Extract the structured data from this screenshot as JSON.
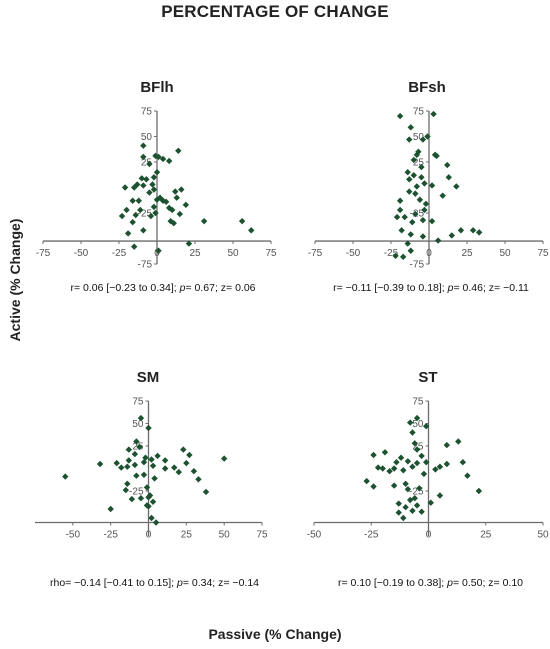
{
  "title": "PERCENTAGE OF CHANGE",
  "ylabel": "Active (% Change)",
  "xlabel": "Passive (% Change)",
  "colors": {
    "marker": "#1d5230",
    "axis": "#6b6b6b"
  },
  "chart_data": [
    {
      "type": "scatter",
      "title": "BFlh",
      "stats": {
        "prefix": "r= 0.06 [−0.23 to 0.34];  ",
        "p_label": "p",
        "p_rest": "= 0.67;  z= 0.06"
      },
      "xticks": [
        "-75",
        "-50",
        "-25",
        "0",
        "25",
        "50",
        "75"
      ],
      "yticks": [
        "-75",
        "-25",
        "25",
        "50",
        "75"
      ],
      "xlim": [
        -75,
        75
      ],
      "ylim": [
        -75,
        75
      ],
      "points": [
        [
          -9,
          41
        ],
        [
          -9,
          30
        ],
        [
          -5,
          23
        ],
        [
          -2,
          10
        ],
        [
          -10,
          9
        ],
        [
          -7,
          8
        ],
        [
          -3,
          3
        ],
        [
          -5,
          -5
        ],
        [
          -9,
          2
        ],
        [
          -13,
          3
        ],
        [
          -15,
          0
        ],
        [
          -21,
          0
        ],
        [
          -12,
          -13
        ],
        [
          -16,
          -13
        ],
        [
          -11,
          -22
        ],
        [
          -14,
          -27
        ],
        [
          -20,
          -22
        ],
        [
          -23,
          -28
        ],
        [
          -16,
          -34
        ],
        [
          -19,
          -45
        ],
        [
          -9,
          -42
        ],
        [
          -2,
          -19
        ],
        [
          -1,
          -25
        ],
        [
          -4,
          -28
        ],
        [
          0,
          -12
        ],
        [
          4,
          -13
        ],
        [
          6,
          -14
        ],
        [
          2,
          -10
        ],
        [
          -2,
          -2
        ],
        [
          0,
          15
        ],
        [
          1,
          30
        ],
        [
          4,
          28
        ],
        [
          8,
          26
        ],
        [
          -1,
          31
        ],
        [
          8,
          -20
        ],
        [
          10,
          -22
        ],
        [
          12,
          -4
        ],
        [
          16,
          -2
        ],
        [
          19,
          -17
        ],
        [
          15,
          -26
        ],
        [
          9,
          -33
        ],
        [
          11,
          -35
        ],
        [
          13,
          -10
        ],
        [
          14,
          36
        ],
        [
          31,
          -33
        ],
        [
          56,
          -33
        ],
        [
          62,
          -42
        ],
        [
          21,
          -55
        ],
        [
          1,
          -62
        ],
        [
          -15,
          -58
        ]
      ]
    },
    {
      "type": "scatter",
      "title": "BFsh",
      "stats": {
        "prefix": "r= −0.11 [−0.39 to 0.18];  ",
        "p_label": "p",
        "p_rest": "= 0.46;  z= −0.11"
      },
      "xticks": [
        "-75",
        "-50",
        "-25",
        "0",
        "25",
        "50",
        "75"
      ],
      "yticks": [
        "-75",
        "-25",
        "25",
        "50",
        "75"
      ],
      "xlim": [
        -75,
        75
      ],
      "ylim": [
        -75,
        75
      ],
      "points": [
        [
          3,
          72
        ],
        [
          -19,
          70
        ],
        [
          -12,
          59
        ],
        [
          -4,
          47
        ],
        [
          -1,
          50
        ],
        [
          -13,
          47
        ],
        [
          -8,
          32
        ],
        [
          -10,
          27
        ],
        [
          -5,
          20
        ],
        [
          -14,
          15
        ],
        [
          -13,
          8
        ],
        [
          -10,
          12
        ],
        [
          -5,
          10
        ],
        [
          -8,
          1
        ],
        [
          -3,
          4
        ],
        [
          2,
          2
        ],
        [
          -9,
          -6
        ],
        [
          -13,
          -4
        ],
        [
          -6,
          -12
        ],
        [
          -2,
          -16
        ],
        [
          -3,
          -22
        ],
        [
          -9,
          -26
        ],
        [
          -16,
          -29
        ],
        [
          -19,
          -13
        ],
        [
          -21,
          -29
        ],
        [
          -11,
          -34
        ],
        [
          -4,
          -32
        ],
        [
          -12,
          -46
        ],
        [
          -4,
          -48
        ],
        [
          -18,
          -42
        ],
        [
          -14,
          -55
        ],
        [
          -22,
          -67
        ],
        [
          -17,
          -68
        ],
        [
          6,
          -52
        ],
        [
          9,
          -8
        ],
        [
          12,
          22
        ],
        [
          13,
          10
        ],
        [
          18,
          1
        ],
        [
          21,
          -42
        ],
        [
          29,
          -42
        ],
        [
          33,
          -44
        ],
        [
          15,
          -47
        ],
        [
          4,
          32
        ],
        [
          5,
          31
        ],
        [
          -7,
          35
        ],
        [
          -19,
          -22
        ],
        [
          -12,
          -62
        ],
        [
          2,
          -33
        ]
      ]
    },
    {
      "type": "scatter",
      "title": "SM",
      "stats": {
        "prefix": "rho= −0.14 [−0.41 to 0.15];  ",
        "p_label": "p",
        "p_rest": "= 0.34;  z= −0.14"
      },
      "xticks": [
        "-50",
        "-25",
        "0",
        "25",
        "50",
        "75"
      ],
      "yticks": [
        "-25",
        "25",
        "50",
        "75"
      ],
      "xlim": [
        -75,
        75
      ],
      "ylim": [
        -75,
        75
      ],
      "points": [
        [
          -5,
          56
        ],
        [
          0,
          45
        ],
        [
          -8,
          30
        ],
        [
          -13,
          21
        ],
        [
          -6,
          24
        ],
        [
          -9,
          16
        ],
        [
          -3,
          7
        ],
        [
          -14,
          2
        ],
        [
          -9,
          4
        ],
        [
          -18,
          1
        ],
        [
          -21,
          6
        ],
        [
          -13,
          9
        ],
        [
          -2,
          12
        ],
        [
          2,
          10
        ],
        [
          3,
          3
        ],
        [
          -3,
          -7
        ],
        [
          -8,
          -8
        ],
        [
          -14,
          -17
        ],
        [
          -15,
          -24
        ],
        [
          -11,
          -34
        ],
        [
          -5,
          -33
        ],
        [
          -1,
          -21
        ],
        [
          0,
          -32
        ],
        [
          4,
          -11
        ],
        [
          6,
          14
        ],
        [
          11,
          9
        ],
        [
          11,
          0
        ],
        [
          17,
          1
        ],
        [
          20,
          -4
        ],
        [
          25,
          6
        ],
        [
          23,
          21
        ],
        [
          27,
          15
        ],
        [
          30,
          -3
        ],
        [
          33,
          -12
        ],
        [
          38,
          -26
        ],
        [
          50,
          11
        ],
        [
          -32,
          5
        ],
        [
          -55,
          -9
        ],
        [
          -25,
          -45
        ],
        [
          0,
          -42
        ],
        [
          2,
          -55
        ],
        [
          5,
          -60
        ],
        [
          3,
          -37
        ],
        [
          1,
          -30
        ],
        [
          -1,
          -41
        ]
      ]
    },
    {
      "type": "scatter",
      "title": "ST",
      "stats": {
        "prefix": "r= 0.10 [−0.19 to 0.38];  ",
        "p_label": "p",
        "p_rest": "= 0.50;  z= 0.10"
      },
      "xticks": [
        "-50",
        "-25",
        "0",
        "25",
        "50"
      ],
      "yticks": [
        "-25",
        "25",
        "50",
        "75"
      ],
      "xlim": [
        -50,
        50
      ],
      "ylim": [
        -75,
        75
      ],
      "points": [
        [
          -5,
          56
        ],
        [
          -8,
          51
        ],
        [
          -1,
          47
        ],
        [
          -7,
          40
        ],
        [
          -6,
          28
        ],
        [
          -5,
          21
        ],
        [
          -3,
          14
        ],
        [
          -19,
          18
        ],
        [
          -24,
          15
        ],
        [
          -12,
          12
        ],
        [
          -14,
          7
        ],
        [
          -9,
          8
        ],
        [
          -5,
          6
        ],
        [
          -1,
          7
        ],
        [
          -7,
          2
        ],
        [
          -15,
          0
        ],
        [
          -20,
          0
        ],
        [
          -17,
          -3
        ],
        [
          -22,
          1
        ],
        [
          -27,
          -14
        ],
        [
          -24,
          -20
        ],
        [
          -15,
          -19
        ],
        [
          -10,
          -17
        ],
        [
          -9,
          -23
        ],
        [
          -4,
          -22
        ],
        [
          -2,
          -6
        ],
        [
          -11,
          -2
        ],
        [
          -8,
          -35
        ],
        [
          -5,
          -41
        ],
        [
          -10,
          -43
        ],
        [
          -13,
          -39
        ],
        [
          -7,
          -47
        ],
        [
          -11,
          -55
        ],
        [
          -3,
          -48
        ],
        [
          1,
          -38
        ],
        [
          3,
          -1
        ],
        [
          5,
          2
        ],
        [
          5,
          -30
        ],
        [
          8,
          5
        ],
        [
          8,
          26
        ],
        [
          13,
          30
        ],
        [
          15,
          7
        ],
        [
          17,
          -8
        ],
        [
          22,
          -25
        ],
        [
          -6,
          -33
        ],
        [
          -13,
          -49
        ]
      ]
    }
  ]
}
